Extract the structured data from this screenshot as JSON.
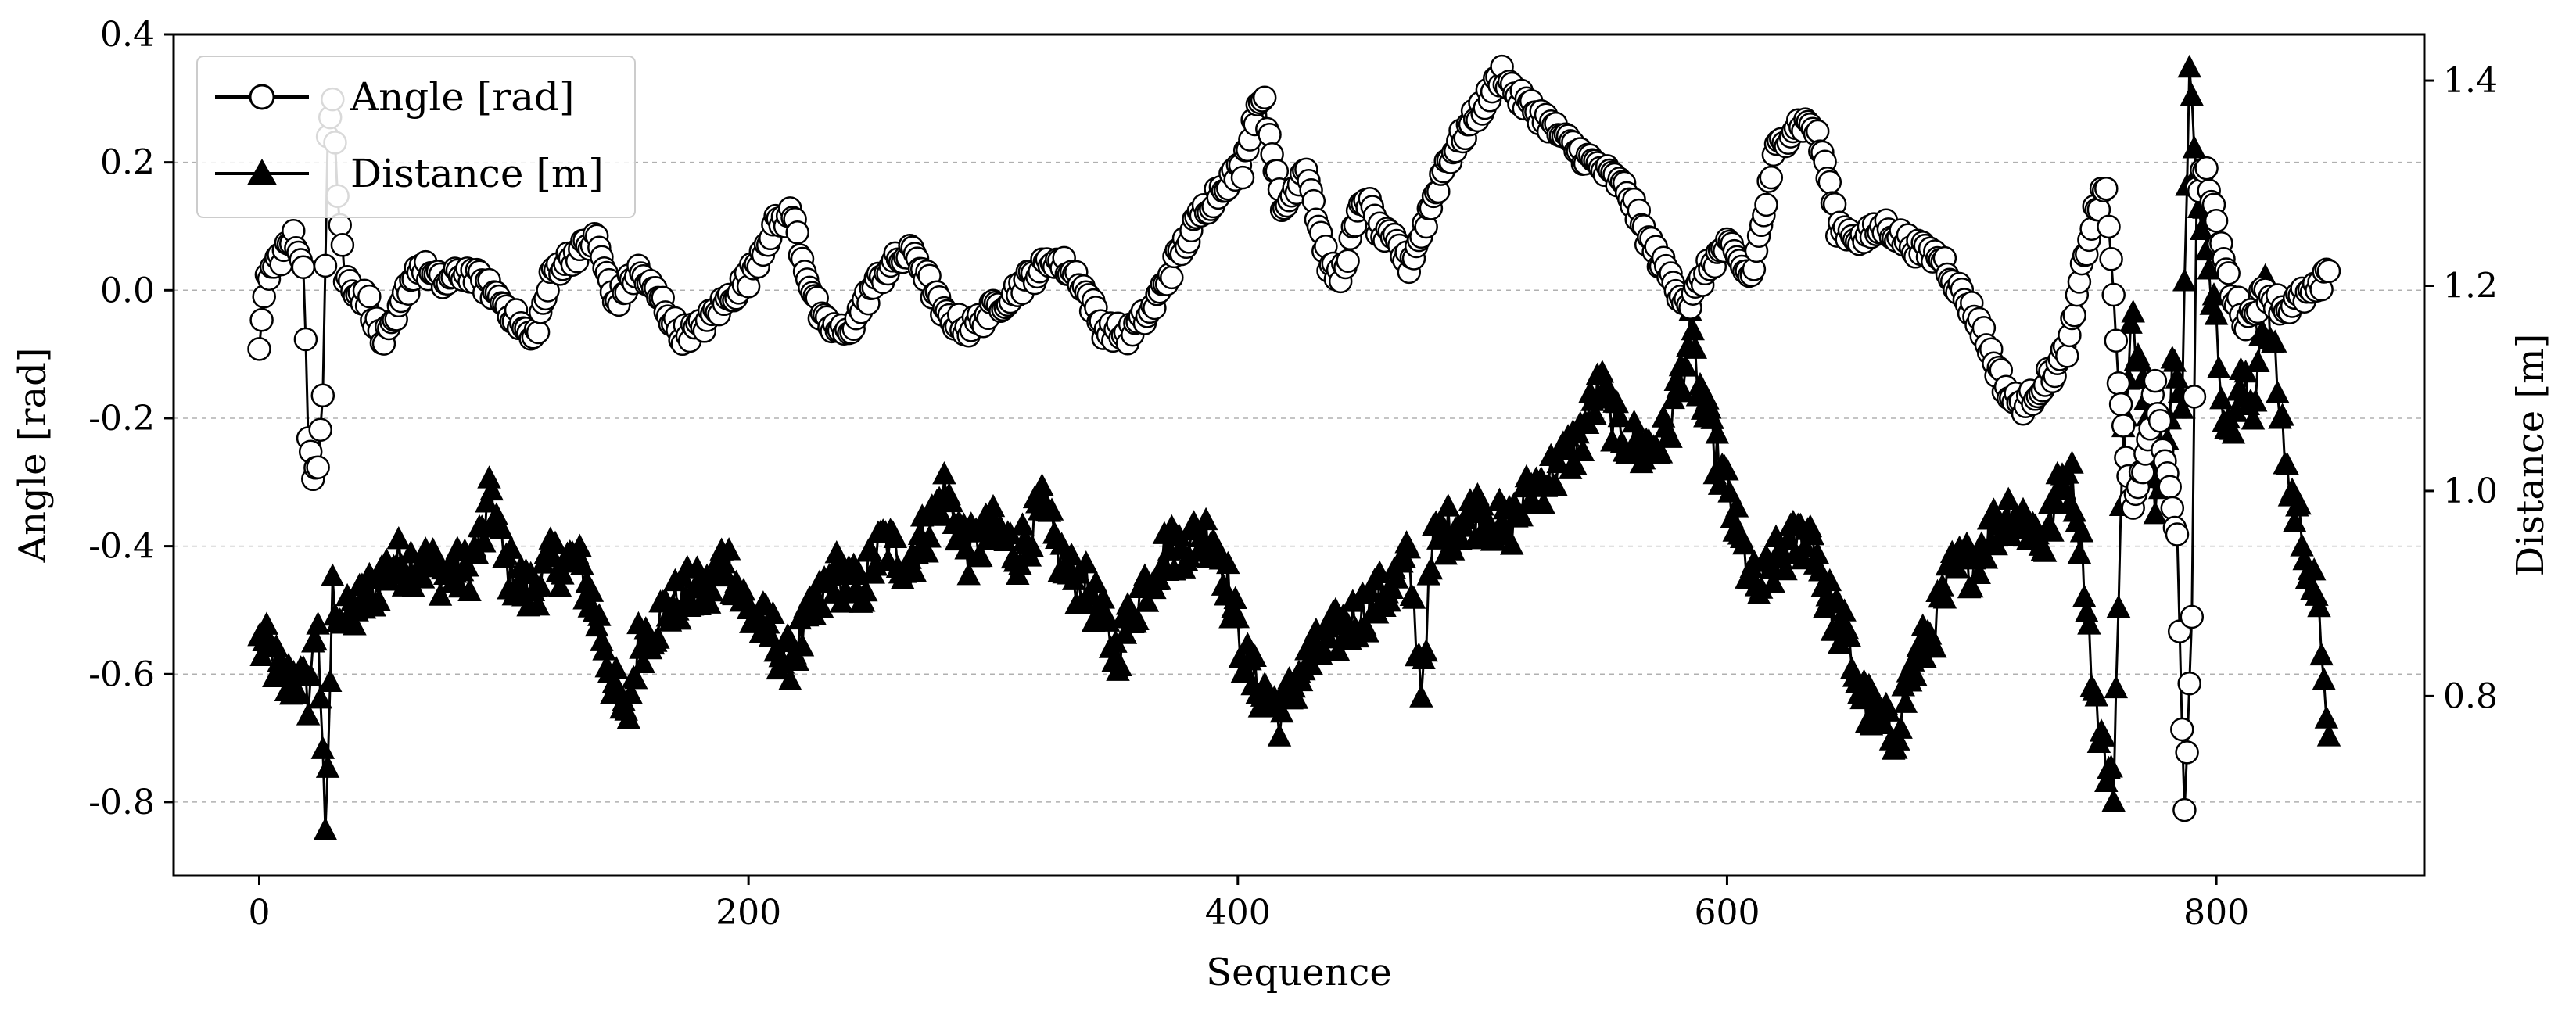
{
  "chart_data": {
    "type": "line",
    "xlabel": "Sequence",
    "ylabel_left": "Angle [rad]",
    "ylabel_right": "Distance [m]",
    "xlim": [
      -35,
      885
    ],
    "ylim_left": [
      -0.915,
      0.4
    ],
    "ylim_right": [
      0.625,
      1.445
    ],
    "x_ticks": [
      0,
      200,
      400,
      600,
      800
    ],
    "y_ticks_left": [
      -0.8,
      -0.6,
      -0.4,
      -0.2,
      0.0,
      0.2,
      0.4
    ],
    "y_ticks_left_labels": [
      "-0.8",
      "-0.6",
      "-0.4",
      "-0.2",
      "0.0",
      "0.2",
      "0.4"
    ],
    "y_ticks_right": [
      0.8,
      1.0,
      1.2,
      1.4
    ],
    "y_ticks_right_labels": [
      "0.8",
      "1.0",
      "1.2",
      "1.4"
    ],
    "grid": "horizontal dashed",
    "legend_position": "top-left",
    "series": [
      {
        "name": "Angle [rad]",
        "axis": "left",
        "marker": "circle-open",
        "color": "#000000",
        "anchors": [
          [
            0,
            -0.1
          ],
          [
            3,
            0.02
          ],
          [
            8,
            0.05
          ],
          [
            14,
            0.08
          ],
          [
            18,
            0.05
          ],
          [
            20,
            -0.22
          ],
          [
            22,
            -0.3
          ],
          [
            24,
            -0.28
          ],
          [
            26,
            -0.15
          ],
          [
            28,
            0.25
          ],
          [
            30,
            0.31
          ],
          [
            32,
            0.15
          ],
          [
            35,
            0.02
          ],
          [
            45,
            -0.02
          ],
          [
            50,
            -0.08
          ],
          [
            55,
            -0.06
          ],
          [
            60,
            0.0
          ],
          [
            65,
            0.04
          ],
          [
            75,
            0.01
          ],
          [
            85,
            0.03
          ],
          [
            95,
            0.0
          ],
          [
            100,
            -0.02
          ],
          [
            108,
            -0.06
          ],
          [
            112,
            -0.08
          ],
          [
            120,
            0.03
          ],
          [
            130,
            0.06
          ],
          [
            138,
            0.08
          ],
          [
            145,
            -0.02
          ],
          [
            155,
            0.03
          ],
          [
            165,
            -0.02
          ],
          [
            172,
            -0.07
          ],
          [
            180,
            -0.06
          ],
          [
            190,
            -0.02
          ],
          [
            200,
            0.02
          ],
          [
            210,
            0.1
          ],
          [
            218,
            0.12
          ],
          [
            222,
            0.05
          ],
          [
            230,
            -0.05
          ],
          [
            240,
            -0.07
          ],
          [
            250,
            0.0
          ],
          [
            258,
            0.04
          ],
          [
            268,
            0.06
          ],
          [
            280,
            -0.04
          ],
          [
            290,
            -0.06
          ],
          [
            300,
            -0.03
          ],
          [
            315,
            0.02
          ],
          [
            325,
            0.05
          ],
          [
            335,
            0.02
          ],
          [
            345,
            -0.06
          ],
          [
            355,
            -0.07
          ],
          [
            365,
            -0.03
          ],
          [
            375,
            0.05
          ],
          [
            385,
            0.12
          ],
          [
            395,
            0.17
          ],
          [
            402,
            0.19
          ],
          [
            405,
            0.25
          ],
          [
            410,
            0.31
          ],
          [
            415,
            0.2
          ],
          [
            418,
            0.12
          ],
          [
            422,
            0.15
          ],
          [
            428,
            0.2
          ],
          [
            433,
            0.1
          ],
          [
            438,
            0.03
          ],
          [
            442,
            0.02
          ],
          [
            448,
            0.1
          ],
          [
            452,
            0.15
          ],
          [
            458,
            0.09
          ],
          [
            465,
            0.07
          ],
          [
            470,
            0.04
          ],
          [
            476,
            0.1
          ],
          [
            485,
            0.2
          ],
          [
            495,
            0.26
          ],
          [
            502,
            0.3
          ],
          [
            508,
            0.34
          ],
          [
            515,
            0.3
          ],
          [
            525,
            0.27
          ],
          [
            535,
            0.23
          ],
          [
            545,
            0.2
          ],
          [
            555,
            0.17
          ],
          [
            560,
            0.15
          ],
          [
            565,
            0.1
          ],
          [
            572,
            0.05
          ],
          [
            580,
            0.0
          ],
          [
            585,
            -0.02
          ],
          [
            590,
            0.02
          ],
          [
            595,
            0.05
          ],
          [
            600,
            0.07
          ],
          [
            605,
            0.04
          ],
          [
            610,
            0.02
          ],
          [
            615,
            0.12
          ],
          [
            620,
            0.22
          ],
          [
            628,
            0.26
          ],
          [
            635,
            0.26
          ],
          [
            640,
            0.2
          ],
          [
            645,
            0.1
          ],
          [
            655,
            0.08
          ],
          [
            665,
            0.1
          ],
          [
            672,
            0.08
          ],
          [
            680,
            0.06
          ],
          [
            688,
            0.05
          ],
          [
            695,
            0.0
          ],
          [
            703,
            -0.05
          ],
          [
            710,
            -0.12
          ],
          [
            716,
            -0.17
          ],
          [
            722,
            -0.18
          ],
          [
            728,
            -0.15
          ],
          [
            735,
            -0.12
          ],
          [
            740,
            -0.08
          ],
          [
            746,
            0.05
          ],
          [
            750,
            0.12
          ],
          [
            755,
            0.16
          ],
          [
            757,
            0.05
          ],
          [
            760,
            -0.15
          ],
          [
            763,
            -0.25
          ],
          [
            766,
            -0.35
          ],
          [
            770,
            -0.28
          ],
          [
            775,
            -0.15
          ],
          [
            780,
            -0.3
          ],
          [
            784,
            -0.38
          ],
          [
            787,
            -0.82
          ],
          [
            790,
            -0.5
          ],
          [
            792,
            0.15
          ],
          [
            795,
            0.2
          ],
          [
            800,
            0.1
          ],
          [
            806,
            0.0
          ],
          [
            812,
            -0.05
          ],
          [
            820,
            0.0
          ],
          [
            828,
            -0.03
          ],
          [
            835,
            -0.01
          ],
          [
            842,
            0.0
          ],
          [
            846,
            0.03
          ]
        ]
      },
      {
        "name": "Distance [m]",
        "axis": "right",
        "marker": "triangle-filled",
        "color": "#000000",
        "anchors": [
          [
            0,
            0.85
          ],
          [
            5,
            0.84
          ],
          [
            10,
            0.81
          ],
          [
            15,
            0.82
          ],
          [
            20,
            0.8
          ],
          [
            24,
            0.88
          ],
          [
            27,
            0.65
          ],
          [
            30,
            0.9
          ],
          [
            35,
            0.87
          ],
          [
            45,
            0.9
          ],
          [
            55,
            0.93
          ],
          [
            65,
            0.93
          ],
          [
            75,
            0.92
          ],
          [
            85,
            0.92
          ],
          [
            92,
            0.96
          ],
          [
            95,
            1.0
          ],
          [
            100,
            0.93
          ],
          [
            110,
            0.9
          ],
          [
            120,
            0.93
          ],
          [
            130,
            0.93
          ],
          [
            135,
            0.9
          ],
          [
            140,
            0.86
          ],
          [
            145,
            0.81
          ],
          [
            150,
            0.77
          ],
          [
            155,
            0.85
          ],
          [
            165,
            0.88
          ],
          [
            175,
            0.9
          ],
          [
            185,
            0.9
          ],
          [
            190,
            0.94
          ],
          [
            200,
            0.88
          ],
          [
            210,
            0.86
          ],
          [
            215,
            0.83
          ],
          [
            225,
            0.87
          ],
          [
            235,
            0.92
          ],
          [
            245,
            0.9
          ],
          [
            255,
            0.95
          ],
          [
            265,
            0.93
          ],
          [
            275,
            0.97
          ],
          [
            280,
            1.0
          ],
          [
            290,
            0.94
          ],
          [
            300,
            0.96
          ],
          [
            310,
            0.94
          ],
          [
            320,
            0.98
          ],
          [
            330,
            0.92
          ],
          [
            340,
            0.9
          ],
          [
            350,
            0.84
          ],
          [
            360,
            0.9
          ],
          [
            370,
            0.94
          ],
          [
            380,
            0.95
          ],
          [
            390,
            0.96
          ],
          [
            395,
            0.92
          ],
          [
            400,
            0.86
          ],
          [
            405,
            0.82
          ],
          [
            412,
            0.8
          ],
          [
            418,
            0.78
          ],
          [
            425,
            0.82
          ],
          [
            432,
            0.84
          ],
          [
            440,
            0.86
          ],
          [
            450,
            0.88
          ],
          [
            460,
            0.9
          ],
          [
            470,
            0.93
          ],
          [
            475,
            0.81
          ],
          [
            480,
            0.95
          ],
          [
            490,
            0.97
          ],
          [
            500,
            0.98
          ],
          [
            510,
            0.96
          ],
          [
            520,
            1.0
          ],
          [
            530,
            1.02
          ],
          [
            540,
            1.05
          ],
          [
            548,
            1.1
          ],
          [
            555,
            1.06
          ],
          [
            565,
            1.04
          ],
          [
            575,
            1.05
          ],
          [
            585,
            1.15
          ],
          [
            590,
            1.08
          ],
          [
            600,
            1.0
          ],
          [
            605,
            0.95
          ],
          [
            612,
            0.9
          ],
          [
            620,
            0.93
          ],
          [
            628,
            0.95
          ],
          [
            635,
            0.96
          ],
          [
            640,
            0.9
          ],
          [
            648,
            0.86
          ],
          [
            655,
            0.8
          ],
          [
            660,
            0.78
          ],
          [
            668,
            0.76
          ],
          [
            675,
            0.82
          ],
          [
            685,
            0.87
          ],
          [
            692,
            0.92
          ],
          [
            700,
            0.93
          ],
          [
            708,
            0.96
          ],
          [
            715,
            0.98
          ],
          [
            722,
            0.97
          ],
          [
            730,
            0.95
          ],
          [
            738,
            1.02
          ],
          [
            742,
            1.0
          ],
          [
            746,
            0.92
          ],
          [
            750,
            0.8
          ],
          [
            754,
            0.74
          ],
          [
            758,
            0.72
          ],
          [
            762,
            1.05
          ],
          [
            765,
            1.17
          ],
          [
            770,
            1.1
          ],
          [
            775,
            1.0
          ],
          [
            780,
            1.05
          ],
          [
            783,
            1.15
          ],
          [
            786,
            1.1
          ],
          [
            789,
            1.4
          ],
          [
            792,
            1.3
          ],
          [
            796,
            1.25
          ],
          [
            800,
            1.15
          ],
          [
            805,
            1.05
          ],
          [
            810,
            1.1
          ],
          [
            815,
            1.08
          ],
          [
            820,
            1.2
          ],
          [
            826,
            1.08
          ],
          [
            830,
            1.0
          ],
          [
            835,
            0.96
          ],
          [
            840,
            0.9
          ],
          [
            844,
            0.83
          ],
          [
            846,
            0.76
          ]
        ]
      }
    ]
  }
}
